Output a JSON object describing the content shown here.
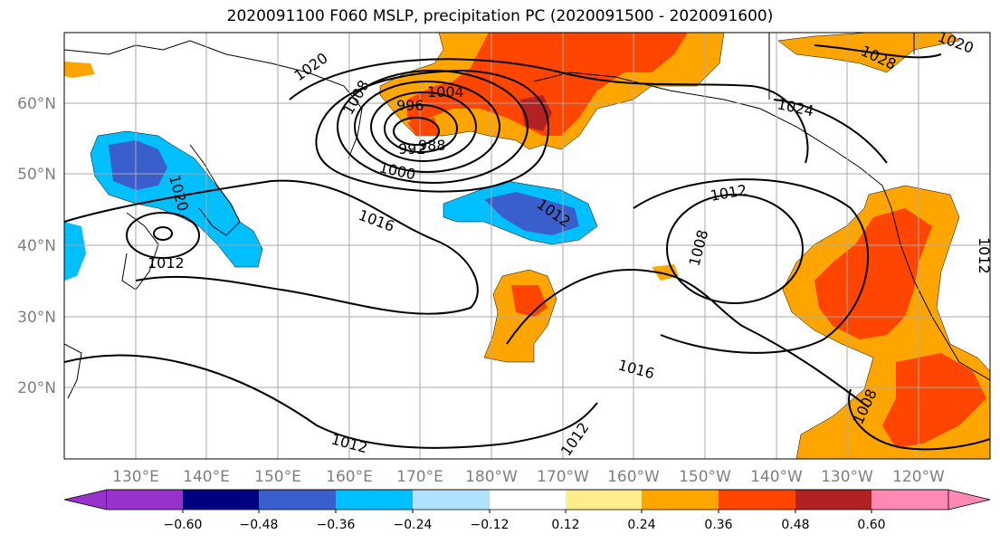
{
  "title": "2020091100 F060 MSLP, precipitation PC (2020091500 - 2020091600)",
  "lat_labels": [
    "60°N",
    "50°N",
    "40°N",
    "30°N",
    "20°N"
  ],
  "lon_labels": [
    "130°E",
    "140°E",
    "150°E",
    "160°E",
    "170°E",
    "180°W",
    "170°W",
    "160°W",
    "150°W",
    "140°W",
    "130°W",
    "120°W"
  ],
  "colorbar": {
    "colors": [
      "#9932cc",
      "#000080",
      "#3a5fcd",
      "#00bfff",
      "#b0e2ff",
      "#ffffff",
      "#ffec8b",
      "#ffa500",
      "#ff4500",
      "#b22222",
      "#ff89b4"
    ],
    "labels": [
      "−0.60",
      "−0.48",
      "−0.36",
      "−0.24",
      "−0.12",
      "0.12",
      "0.24",
      "0.36",
      "0.48",
      "0.60"
    ]
  },
  "contour_labels": [
    "1020",
    "1008",
    "1004",
    "996",
    "992",
    "988",
    "1000",
    "1016",
    "1012",
    "1012",
    "1024",
    "1028",
    "1020",
    "1012",
    "1008",
    "1016",
    "1012",
    "1012",
    "1008",
    "1020",
    "1012"
  ],
  "chart_data": {
    "type": "map",
    "title": "2020091100 F060 MSLP, precipitation PC (2020091500 - 2020091600)",
    "fields": [
      "MSLP contours (hPa)",
      "precipitation PC (filled)"
    ],
    "lat_ticks": [
      "60°N",
      "50°N",
      "40°N",
      "30°N",
      "20°N"
    ],
    "lon_ticks": [
      "130°E",
      "140°E",
      "150°E",
      "160°E",
      "170°E",
      "180°W",
      "170°W",
      "160°W",
      "150°W",
      "140°W",
      "130°W",
      "120°W"
    ],
    "colorbar_levels": [
      -0.6,
      -0.48,
      -0.36,
      -0.24,
      -0.12,
      0.12,
      0.24,
      0.36,
      0.48,
      0.6
    ],
    "colorbar_extend": "both",
    "contour_levels_labeled": [
      988,
      992,
      996,
      1000,
      1004,
      1008,
      1012,
      1016,
      1020,
      1024,
      1028
    ],
    "grid": true
  }
}
